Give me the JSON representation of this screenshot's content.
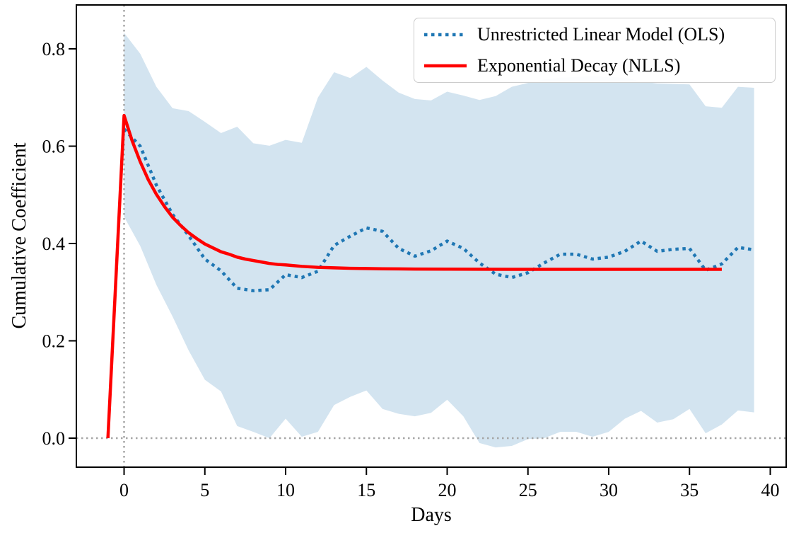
{
  "chart_data": {
    "type": "line",
    "title": "",
    "xlabel": "Days",
    "ylabel": "Cumulative Coefficient",
    "xlim": [
      -2.95,
      41
    ],
    "ylim": [
      -0.06,
      0.891
    ],
    "grid": "off",
    "legend_position": "upper right",
    "x_ticks": {
      "values": [
        0,
        5,
        10,
        15,
        20,
        25,
        30,
        35,
        40
      ],
      "labels": [
        "0",
        "5",
        "10",
        "15",
        "20",
        "25",
        "30",
        "35",
        "40"
      ]
    },
    "y_ticks": {
      "values": [
        0.0,
        0.2,
        0.4,
        0.6,
        0.8
      ],
      "labels": [
        "0.0",
        "0.2",
        "0.4",
        "0.6",
        "0.8"
      ]
    },
    "reference_lines": {
      "vertical_x": 0,
      "horizontal_y": 0,
      "color": "#a6a6a6",
      "style": "dotted"
    },
    "band": {
      "name": "confidence-band",
      "fill": "#d3e4f0",
      "x": [
        0,
        1,
        2,
        3,
        4,
        5,
        6,
        7,
        8,
        9,
        10,
        11,
        12,
        13,
        14,
        15,
        16,
        17,
        18,
        19,
        20,
        21,
        22,
        23,
        24,
        25,
        26,
        27,
        28,
        29,
        30,
        31,
        32,
        33,
        34,
        35,
        36,
        37,
        38,
        39
      ],
      "upper": [
        0.833,
        0.79,
        0.722,
        0.678,
        0.672,
        0.65,
        0.627,
        0.64,
        0.606,
        0.601,
        0.613,
        0.607,
        0.7,
        0.752,
        0.74,
        0.763,
        0.735,
        0.71,
        0.697,
        0.694,
        0.712,
        0.704,
        0.695,
        0.703,
        0.722,
        0.73,
        0.737,
        0.741,
        0.742,
        0.744,
        0.742,
        0.741,
        0.733,
        0.729,
        0.728,
        0.727,
        0.682,
        0.679,
        0.722,
        0.72
      ],
      "lower": [
        0.455,
        0.395,
        0.315,
        0.25,
        0.18,
        0.12,
        0.096,
        0.025,
        0.013,
        0.0,
        0.04,
        0.003,
        0.013,
        0.068,
        0.085,
        0.098,
        0.06,
        0.05,
        0.045,
        0.052,
        0.079,
        0.045,
        -0.01,
        -0.019,
        -0.016,
        -0.002,
        0.0,
        0.013,
        0.013,
        0.003,
        0.013,
        0.04,
        0.056,
        0.032,
        0.039,
        0.06,
        0.01,
        0.028,
        0.057,
        0.053
      ]
    },
    "series": [
      {
        "name": "Unrestricted Linear Model (OLS)",
        "style": "dotted",
        "color": "#1f77b4",
        "x": [
          0,
          1,
          2,
          3,
          4,
          5,
          6,
          7,
          8,
          9,
          10,
          11,
          12,
          13,
          14,
          15,
          16,
          17,
          18,
          19,
          20,
          21,
          22,
          23,
          24,
          25,
          26,
          27,
          28,
          29,
          30,
          31,
          32,
          33,
          34,
          35,
          36,
          37,
          38,
          39
        ],
        "y": [
          0.635,
          0.6,
          0.52,
          0.46,
          0.416,
          0.368,
          0.344,
          0.308,
          0.303,
          0.305,
          0.336,
          0.33,
          0.343,
          0.396,
          0.415,
          0.432,
          0.425,
          0.39,
          0.374,
          0.385,
          0.405,
          0.39,
          0.36,
          0.337,
          0.33,
          0.34,
          0.36,
          0.378,
          0.378,
          0.368,
          0.372,
          0.384,
          0.405,
          0.384,
          0.388,
          0.39,
          0.345,
          0.358,
          0.392,
          0.387
        ]
      },
      {
        "name": "Exponential Decay (NLLS)",
        "style": "solid",
        "color": "#ff0000",
        "x": [
          -1,
          0,
          0.5,
          1,
          1.5,
          2,
          2.5,
          3,
          3.5,
          4,
          4.5,
          5,
          5.5,
          6,
          6.5,
          7,
          7.5,
          8,
          8.5,
          9,
          9.5,
          10,
          11,
          12,
          13,
          14,
          15,
          16,
          17,
          18,
          20,
          22,
          24,
          26,
          28,
          30,
          32,
          34,
          36,
          37
        ],
        "y": [
          0.0,
          0.663,
          0.611,
          0.568,
          0.531,
          0.501,
          0.476,
          0.454,
          0.437,
          0.422,
          0.41,
          0.399,
          0.391,
          0.383,
          0.378,
          0.372,
          0.368,
          0.365,
          0.362,
          0.359,
          0.357,
          0.356,
          0.353,
          0.351,
          0.35,
          0.349,
          0.3485,
          0.348,
          0.3478,
          0.3475,
          0.3472,
          0.3471,
          0.347,
          0.347,
          0.347,
          0.347,
          0.347,
          0.347,
          0.347,
          0.347
        ]
      }
    ]
  }
}
